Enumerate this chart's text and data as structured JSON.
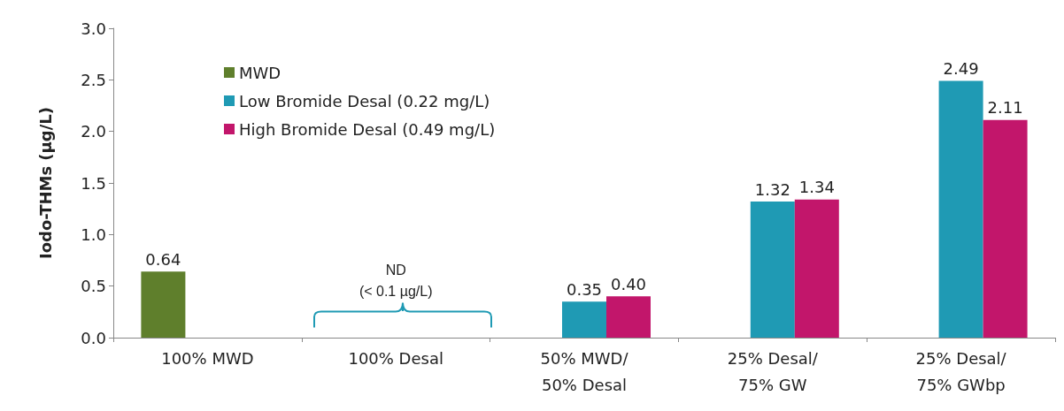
{
  "chart_data": {
    "type": "bar",
    "ylabel": "Iodo-THMs (µg/L)",
    "categories": [
      "100% MWD",
      "100% Desal",
      "50% MWD/\n50% Desal",
      "25% Desal/\n75% GW",
      "25% Desal/\n75% GWbp"
    ],
    "series": [
      {
        "name": "MWD",
        "color": "#5f7f2c",
        "values": [
          0.64,
          null,
          null,
          null,
          null
        ],
        "value_labels": [
          "0.64",
          null,
          null,
          null,
          null
        ]
      },
      {
        "name": "Low Bromide Desal (0.22 mg/L)",
        "color": "#1f9ab4",
        "values": [
          null,
          null,
          0.35,
          1.32,
          2.49
        ],
        "value_labels": [
          null,
          null,
          "0.35",
          "1.32",
          "2.49"
        ]
      },
      {
        "name": "High Bromide Desal (0.49 mg/L)",
        "color": "#c2166b",
        "values": [
          null,
          null,
          0.4,
          1.34,
          2.11
        ],
        "value_labels": [
          null,
          null,
          "0.40",
          "1.34",
          "2.11"
        ]
      }
    ],
    "annotations": [
      "ND\n(< 0.1 µg/L)"
    ],
    "ylim": [
      0,
      3
    ],
    "yticks": [
      {
        "value": 0,
        "label": "0.0"
      },
      0.5,
      {
        "value": 1,
        "label": "1.0"
      },
      1.5,
      {
        "value": 2,
        "label": "2.0"
      },
      2.5,
      {
        "value": 3,
        "label": "3.0"
      }
    ],
    "grid": false,
    "legend": "top left"
  }
}
